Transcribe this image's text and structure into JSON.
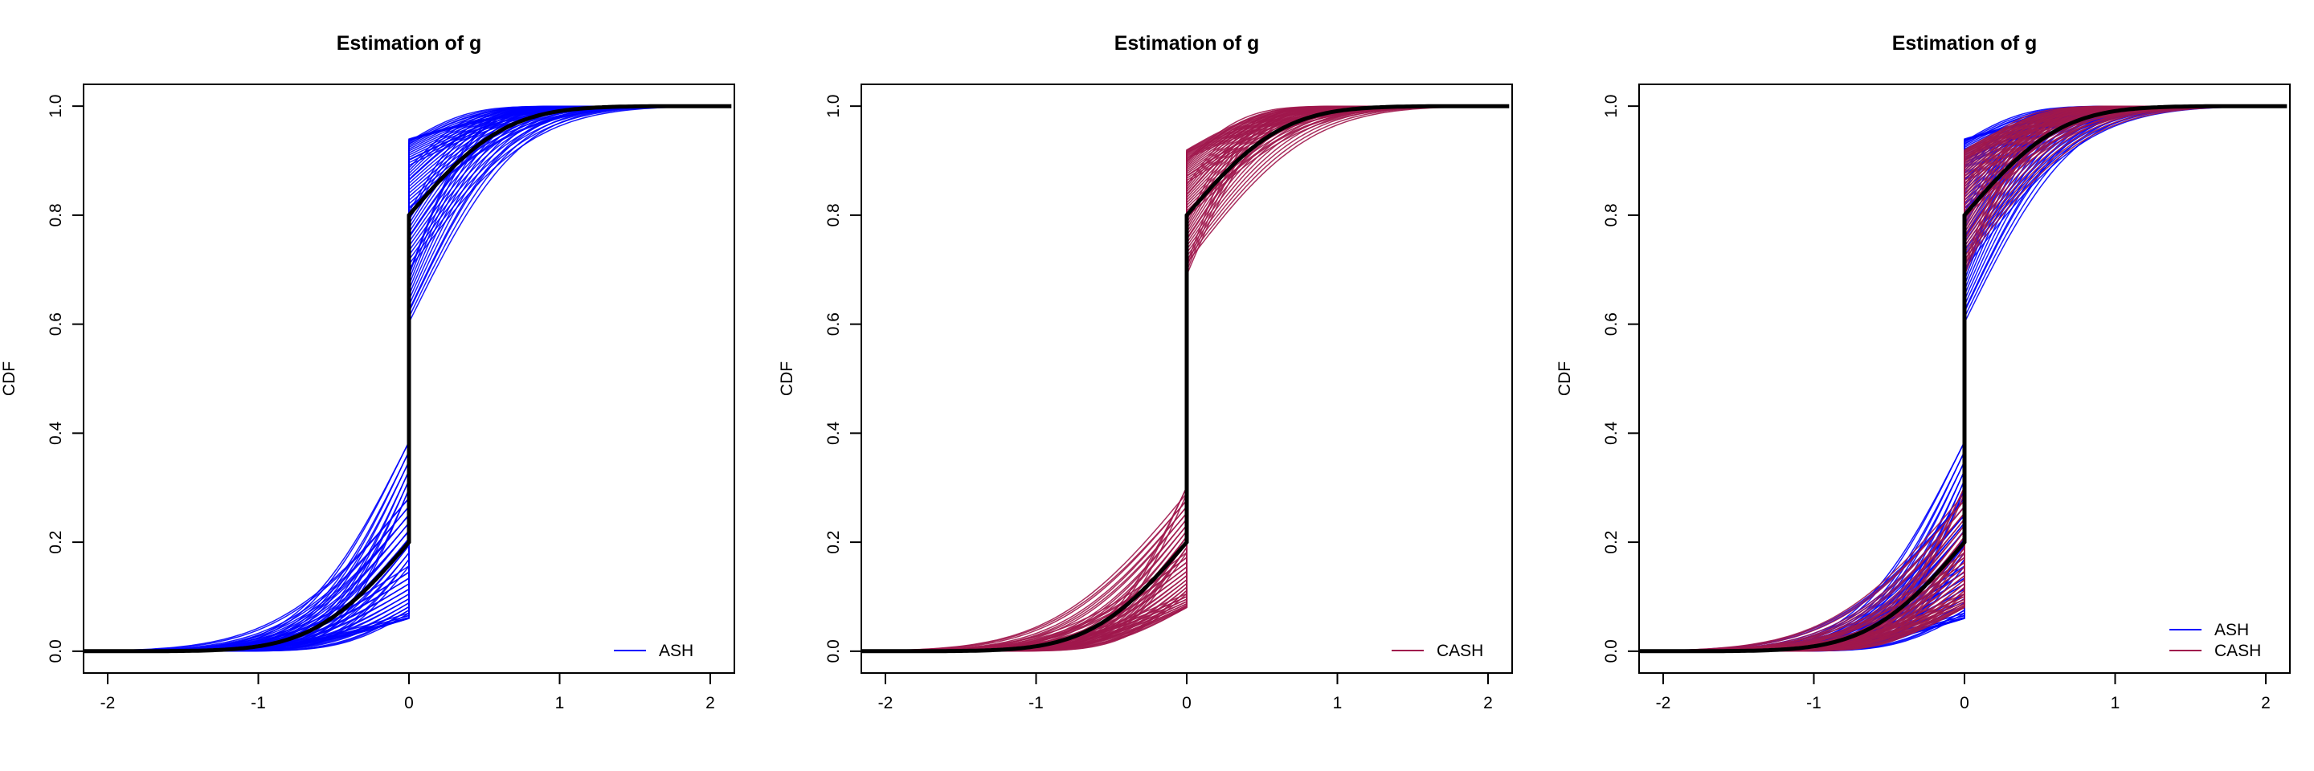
{
  "chart_data": [
    {
      "type": "line",
      "title": "Estimation of g",
      "xlabel": "",
      "ylabel": "CDF",
      "xlim": [
        -2.16,
        2.16
      ],
      "ylim": [
        -0.04,
        1.04
      ],
      "xticks": [
        -2,
        -1,
        0,
        1,
        2
      ],
      "yticks": [
        0.0,
        0.2,
        0.4,
        0.6,
        0.8,
        1.0
      ],
      "xtick_labels": [
        "-2",
        "-1",
        "0",
        "1",
        "2"
      ],
      "ytick_labels": [
        "0.0",
        "0.2",
        "0.4",
        "0.6",
        "0.8",
        "1.0"
      ],
      "grid": false,
      "legend_position": "bottom-right",
      "series": [
        {
          "name": "ASH",
          "color": "#0000ff",
          "curve_count": 60,
          "left_value_at_0": [
            0.06,
            0.4
          ],
          "right_value_at_0": [
            0.6,
            0.94
          ]
        },
        {
          "name": "",
          "color": "#000000",
          "true_cdf": true,
          "left_value_at_0": 0.2,
          "right_value_at_0": 0.8
        }
      ]
    },
    {
      "type": "line",
      "title": "Estimation of g",
      "xlabel": "",
      "ylabel": "CDF",
      "xlim": [
        -2.16,
        2.16
      ],
      "ylim": [
        -0.04,
        1.04
      ],
      "xticks": [
        -2,
        -1,
        0,
        1,
        2
      ],
      "yticks": [
        0.0,
        0.2,
        0.4,
        0.6,
        0.8,
        1.0
      ],
      "xtick_labels": [
        "-2",
        "-1",
        "0",
        "1",
        "2"
      ],
      "ytick_labels": [
        "0.0",
        "0.2",
        "0.4",
        "0.6",
        "0.8",
        "1.0"
      ],
      "grid": false,
      "legend_position": "bottom-right",
      "series": [
        {
          "name": "CASH",
          "color": "#a0174d",
          "curve_count": 60,
          "left_value_at_0": [
            0.08,
            0.31
          ],
          "right_value_at_0": [
            0.69,
            0.92
          ]
        },
        {
          "name": "",
          "color": "#000000",
          "true_cdf": true,
          "left_value_at_0": 0.2,
          "right_value_at_0": 0.8
        }
      ]
    },
    {
      "type": "line",
      "title": "Estimation of g",
      "xlabel": "",
      "ylabel": "CDF",
      "xlim": [
        -2.16,
        2.16
      ],
      "ylim": [
        -0.04,
        1.04
      ],
      "xticks": [
        -2,
        -1,
        0,
        1,
        2
      ],
      "yticks": [
        0.0,
        0.2,
        0.4,
        0.6,
        0.8,
        1.0
      ],
      "xtick_labels": [
        "-2",
        "-1",
        "0",
        "1",
        "2"
      ],
      "ytick_labels": [
        "0.0",
        "0.2",
        "0.4",
        "0.6",
        "0.8",
        "1.0"
      ],
      "grid": false,
      "legend_position": "bottom-right",
      "series": [
        {
          "name": "ASH",
          "color": "#0000ff",
          "curve_count": 60,
          "left_value_at_0": [
            0.06,
            0.4
          ],
          "right_value_at_0": [
            0.6,
            0.94
          ]
        },
        {
          "name": "CASH",
          "color": "#a0174d",
          "curve_count": 60,
          "left_value_at_0": [
            0.08,
            0.31
          ],
          "right_value_at_0": [
            0.69,
            0.92
          ]
        },
        {
          "name": "",
          "color": "#000000",
          "true_cdf": true,
          "left_value_at_0": 0.2,
          "right_value_at_0": 0.8
        }
      ]
    }
  ]
}
